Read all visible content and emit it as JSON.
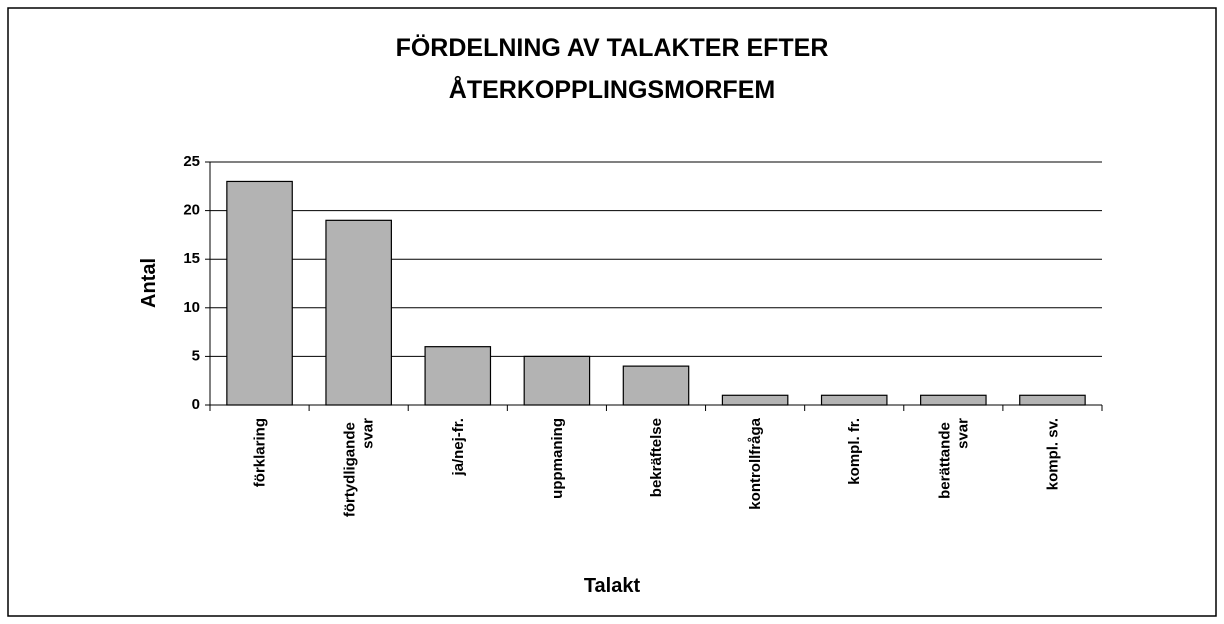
{
  "chart_data": {
    "type": "bar",
    "title": [
      "FÖRDELNING AV TALAKTER EFTER",
      "ÅTERKOPPLINGSMORFEM"
    ],
    "x_label": "Talakt",
    "y_label": "Antal",
    "categories": [
      "förklaring",
      "förtydligande svar",
      "ja/nej-fr.",
      "uppmaning",
      "bekräftelse",
      "kontrollfråga",
      "kompl. fr.",
      "berättande svar",
      "kompl. sv."
    ],
    "values": [
      23,
      19,
      6,
      5,
      4,
      1,
      1,
      1,
      1
    ],
    "color": "#b3b3b3",
    "ylim": [
      0,
      25
    ],
    "yticks": [
      0,
      5,
      10,
      15,
      20,
      25
    ],
    "grid": true
  }
}
